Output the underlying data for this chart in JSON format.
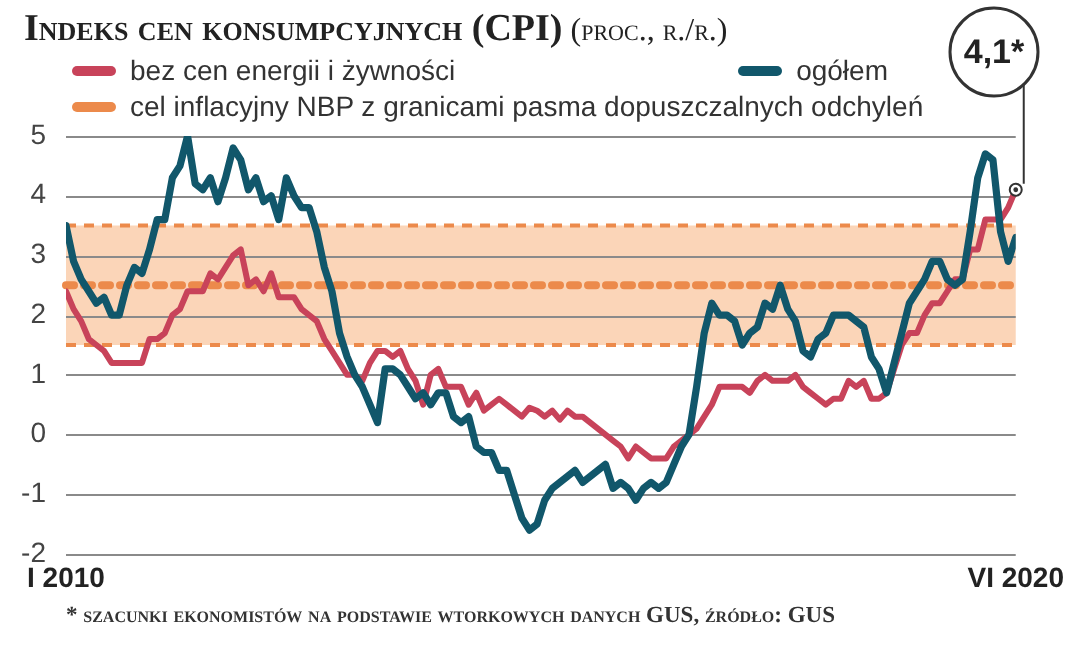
{
  "chart_data": {
    "type": "line",
    "title": "Indeks cen konsumpcyjnych (CPI)",
    "subtitle": "(proc., r./r.)",
    "x": [
      "2010-01",
      "2010-02",
      "2010-03",
      "2010-04",
      "2010-05",
      "2010-06",
      "2010-07",
      "2010-08",
      "2010-09",
      "2010-10",
      "2010-11",
      "2010-12",
      "2011-01",
      "2011-02",
      "2011-03",
      "2011-04",
      "2011-05",
      "2011-06",
      "2011-07",
      "2011-08",
      "2011-09",
      "2011-10",
      "2011-11",
      "2011-12",
      "2012-01",
      "2012-02",
      "2012-03",
      "2012-04",
      "2012-05",
      "2012-06",
      "2012-07",
      "2012-08",
      "2012-09",
      "2012-10",
      "2012-11",
      "2012-12",
      "2013-01",
      "2013-02",
      "2013-03",
      "2013-04",
      "2013-05",
      "2013-06",
      "2013-07",
      "2013-08",
      "2013-09",
      "2013-10",
      "2013-11",
      "2013-12",
      "2014-01",
      "2014-02",
      "2014-03",
      "2014-04",
      "2014-05",
      "2014-06",
      "2014-07",
      "2014-08",
      "2014-09",
      "2014-10",
      "2014-11",
      "2014-12",
      "2015-01",
      "2015-02",
      "2015-03",
      "2015-04",
      "2015-05",
      "2015-06",
      "2015-07",
      "2015-08",
      "2015-09",
      "2015-10",
      "2015-11",
      "2015-12",
      "2016-01",
      "2016-02",
      "2016-03",
      "2016-04",
      "2016-05",
      "2016-06",
      "2016-07",
      "2016-08",
      "2016-09",
      "2016-10",
      "2016-11",
      "2016-12",
      "2017-01",
      "2017-02",
      "2017-03",
      "2017-04",
      "2017-05",
      "2017-06",
      "2017-07",
      "2017-08",
      "2017-09",
      "2017-10",
      "2017-11",
      "2017-12",
      "2018-01",
      "2018-02",
      "2018-03",
      "2018-04",
      "2018-05",
      "2018-06",
      "2018-07",
      "2018-08",
      "2018-09",
      "2018-10",
      "2018-11",
      "2018-12",
      "2019-01",
      "2019-02",
      "2019-03",
      "2019-04",
      "2019-05",
      "2019-06",
      "2019-07",
      "2019-08",
      "2019-09",
      "2019-10",
      "2019-11",
      "2019-12",
      "2020-01",
      "2020-02",
      "2020-03",
      "2020-04",
      "2020-05",
      "2020-06"
    ],
    "xlim": [
      "2010-01",
      "2020-06"
    ],
    "xticks": [
      {
        "value": "2010-01",
        "label": "I 2010"
      },
      {
        "value": "2020-06",
        "label": "VI 2020"
      }
    ],
    "ylim": [
      -2,
      5
    ],
    "yticks": [
      -2,
      -1,
      0,
      1,
      2,
      3,
      4,
      5
    ],
    "grid": "y",
    "legend": "top",
    "marker": "none",
    "line_style": "solid",
    "series": [
      {
        "name": "bez cen energii i żywności",
        "color": "#c8435a",
        "values": [
          2.4,
          2.1,
          1.9,
          1.6,
          1.5,
          1.4,
          1.2,
          1.2,
          1.2,
          1.2,
          1.2,
          1.6,
          1.6,
          1.7,
          2.0,
          2.1,
          2.4,
          2.4,
          2.4,
          2.7,
          2.6,
          2.8,
          3.0,
          3.1,
          2.5,
          2.6,
          2.4,
          2.7,
          2.3,
          2.3,
          2.3,
          2.1,
          2.0,
          1.9,
          1.6,
          1.4,
          1.2,
          1.0,
          1.0,
          0.9,
          1.2,
          1.4,
          1.4,
          1.3,
          1.4,
          1.1,
          0.9,
          0.5,
          1.0,
          1.1,
          0.8,
          0.8,
          0.8,
          0.5,
          0.7,
          0.4,
          0.5,
          0.6,
          0.5,
          0.4,
          0.3,
          0.45,
          0.4,
          0.3,
          0.4,
          0.25,
          0.4,
          0.3,
          0.3,
          0.2,
          0.1,
          0.0,
          -0.1,
          -0.2,
          -0.4,
          -0.2,
          -0.3,
          -0.4,
          -0.4,
          -0.4,
          -0.2,
          -0.1,
          0.0,
          0.1,
          0.3,
          0.5,
          0.8,
          0.8,
          0.8,
          0.8,
          0.7,
          0.9,
          1.0,
          0.9,
          0.9,
          0.9,
          1.0,
          0.8,
          0.7,
          0.6,
          0.5,
          0.6,
          0.6,
          0.9,
          0.8,
          0.9,
          0.6,
          0.6,
          0.7,
          1.1,
          1.5,
          1.7,
          1.7,
          2.0,
          2.2,
          2.2,
          2.4,
          2.6,
          2.6,
          3.1,
          3.1,
          3.6,
          3.6,
          3.6,
          3.8,
          4.1
        ]
      },
      {
        "name": "ogółem",
        "color": "#11576b",
        "values": [
          3.5,
          2.9,
          2.6,
          2.4,
          2.2,
          2.3,
          2.0,
          2.0,
          2.5,
          2.8,
          2.7,
          3.1,
          3.6,
          3.6,
          4.3,
          4.5,
          5.0,
          4.2,
          4.1,
          4.3,
          3.9,
          4.3,
          4.8,
          4.6,
          4.1,
          4.3,
          3.9,
          4.0,
          3.6,
          4.3,
          4.0,
          3.8,
          3.8,
          3.4,
          2.8,
          2.4,
          1.7,
          1.3,
          1.0,
          0.8,
          0.5,
          0.2,
          1.1,
          1.1,
          1.0,
          0.8,
          0.6,
          0.7,
          0.5,
          0.7,
          0.7,
          0.3,
          0.2,
          0.3,
          -0.2,
          -0.3,
          -0.3,
          -0.6,
          -0.6,
          -1.0,
          -1.4,
          -1.6,
          -1.5,
          -1.1,
          -0.9,
          -0.8,
          -0.7,
          -0.6,
          -0.8,
          -0.7,
          -0.6,
          -0.5,
          -0.9,
          -0.8,
          -0.9,
          -1.1,
          -0.9,
          -0.8,
          -0.9,
          -0.8,
          -0.5,
          -0.2,
          0.0,
          0.8,
          1.7,
          2.2,
          2.0,
          2.0,
          1.9,
          1.5,
          1.7,
          1.8,
          2.2,
          2.1,
          2.5,
          2.1,
          1.9,
          1.4,
          1.3,
          1.6,
          1.7,
          2.0,
          2.0,
          2.0,
          1.9,
          1.8,
          1.3,
          1.1,
          0.7,
          1.2,
          1.7,
          2.2,
          2.4,
          2.6,
          2.9,
          2.9,
          2.6,
          2.5,
          2.6,
          3.4,
          4.3,
          4.7,
          4.6,
          3.4,
          2.9,
          3.3
        ]
      }
    ],
    "bands": [
      {
        "axis": "y",
        "from": 1.5,
        "to": 3.5,
        "color": "#fbd5b8"
      }
    ],
    "ref_lines": [
      {
        "axis": "y",
        "value": 2.5,
        "label": "cel inflacyjny NBP z granicami pasma dopuszczalnych odchyleń",
        "color": "#ec8a4b",
        "line_style": "dotted"
      },
      {
        "axis": "y",
        "value": 1.5,
        "color": "#ec8a4b",
        "line_style": "dashed"
      },
      {
        "axis": "y",
        "value": 3.5,
        "color": "#ec8a4b",
        "line_style": "dashed"
      }
    ],
    "annotations": [
      {
        "text": "4,1*",
        "x": "2020-06",
        "y": 4.1
      },
      "* szacunki ekonomistów na podstawie wtorkowych danych GUS, źródło: GUS"
    ]
  }
}
